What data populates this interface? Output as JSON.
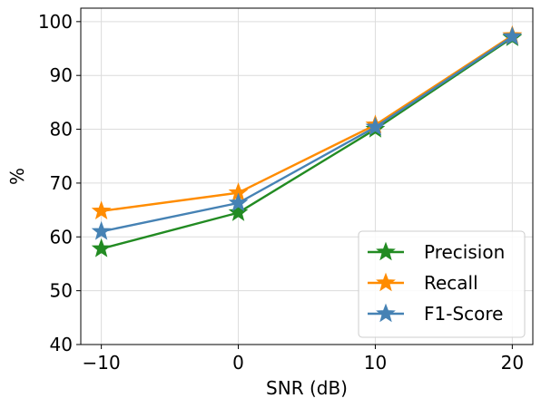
{
  "chart_data": {
    "type": "line",
    "title": "",
    "xlabel": "SNR (dB)",
    "ylabel": "%",
    "x": [
      -10,
      0,
      10,
      20
    ],
    "xticks": [
      -10,
      0,
      10,
      20
    ],
    "xtick_labels": [
      "−10",
      "0",
      "10",
      "20"
    ],
    "yticks": [
      40,
      50,
      60,
      70,
      80,
      90,
      100
    ],
    "ytick_labels": [
      "40",
      "50",
      "60",
      "70",
      "80",
      "90",
      "100"
    ],
    "xlim": [
      -11.5,
      21.5
    ],
    "ylim": [
      40,
      102.5
    ],
    "grid": true,
    "legend_position": "lower-right",
    "marker": "star",
    "series": [
      {
        "name": "Precision",
        "values": [
          57.8,
          64.5,
          80.0,
          97.0
        ],
        "color": "#228b22"
      },
      {
        "name": "Recall",
        "values": [
          64.8,
          68.2,
          80.8,
          97.4
        ],
        "color": "#ff8c00"
      },
      {
        "name": "F1-Score",
        "values": [
          61.0,
          66.3,
          80.4,
          97.2
        ],
        "color": "#4682b4"
      }
    ]
  }
}
